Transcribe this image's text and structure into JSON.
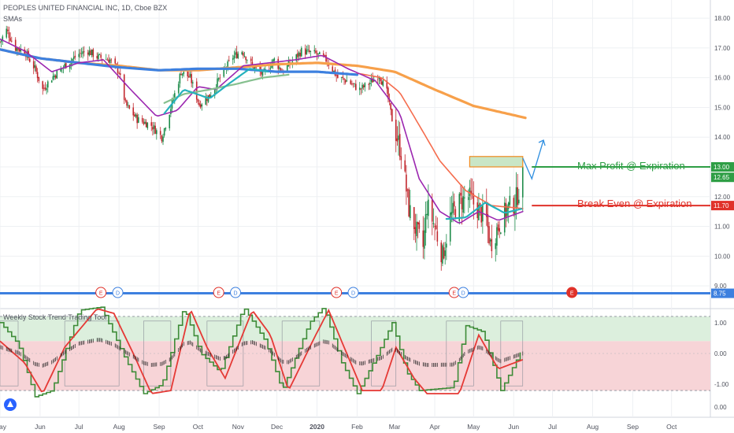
{
  "header": {
    "symbol_line": "PEOPLES UNITED FINANCIAL INC, 1D, Cboe BZX",
    "indicator_line": "SMAs"
  },
  "colors": {
    "bg": "#ffffff",
    "grid": "#eef0f3",
    "axis_text": "#50535e",
    "separator": "#d1d4dc",
    "candle_up": "#1e8c4a",
    "candle_down": "#c2272d",
    "sma_fast": "#9c27b0",
    "sma_mid": "#f56c4d",
    "sma_long": "#f7a04a",
    "sma_200": "#3d80df",
    "sma_teal": "#25b2bd",
    "sma_sage": "#86c08f",
    "profit": "#2e9e45",
    "breakeven": "#e0322a",
    "arrow": "#2f8fe0",
    "box_stroke": "#f08a1f",
    "box_fill": "#c9e6c6",
    "level_line": "#3d80df",
    "osc_red": "#e53935",
    "osc_green": "#3d8b37",
    "osc_green_zone": "#dcefdd",
    "osc_red_zone": "#f7d4d7",
    "earnings": "#e0322a",
    "dividend": "#3d80df"
  },
  "annotations": {
    "max_profit": "Max Profit @ Expiration",
    "break_even": "Break Even @ Expiration"
  },
  "badges": [
    {
      "label": "13.00",
      "color": "#2e9e45",
      "value": 13.0
    },
    {
      "label": "12.65",
      "color": "#2e9e45",
      "value": 12.65
    },
    {
      "label": "11.70",
      "color": "#e0322a",
      "value": 11.7
    },
    {
      "label": "8.75",
      "color": "#3d80df",
      "value": 8.75
    }
  ],
  "events": [
    {
      "type": "E",
      "date": "2019-07-18"
    },
    {
      "type": "D",
      "date": "2019-07-31"
    },
    {
      "type": "E",
      "date": "2019-10-17"
    },
    {
      "type": "D",
      "date": "2019-10-30"
    },
    {
      "type": "E",
      "date": "2020-01-16"
    },
    {
      "type": "D",
      "date": "2020-01-29"
    },
    {
      "type": "E",
      "date": "2020-04-16"
    },
    {
      "type": "D",
      "date": "2020-04-23"
    },
    {
      "type": "E",
      "date": "2020-07-16",
      "upcoming": true
    }
  ],
  "oscillator": {
    "title": "Weekly Stock Trend Trading Tool",
    "ticks": [
      "1.00",
      "0.00",
      "-1.00"
    ],
    "ylim": [
      -1.3,
      1.3
    ],
    "upper_zone": [
      0.4,
      1.2
    ],
    "lower_zone": [
      -1.2,
      0.4
    ]
  },
  "chart_data": {
    "type": "candlestick",
    "title": "PEOPLES UNITED FINANCIAL INC, 1D, Cboe BZX",
    "x_start": "2019-05-01",
    "x_end": "2020-10-31",
    "x_ticks": [
      "May",
      "Jun",
      "Jul",
      "Aug",
      "Sep",
      "Oct",
      "Nov",
      "Dec",
      "2020",
      "Feb",
      "Mar",
      "Apr",
      "May",
      "Jun",
      "Jul",
      "Aug",
      "Sep",
      "Oct"
    ],
    "y_ticks": [
      "18.00",
      "17.00",
      "16.00",
      "15.00",
      "14.00",
      "13.00",
      "12.00",
      "11.00",
      "10.00",
      "9.00"
    ],
    "ylim": [
      8.5,
      18.4
    ],
    "price_keyframes": [
      [
        "2019-05-01",
        17.2
      ],
      [
        "2019-05-06",
        17.6
      ],
      [
        "2019-05-13",
        17.0
      ],
      [
        "2019-05-20",
        16.9
      ],
      [
        "2019-05-28",
        16.3
      ],
      [
        "2019-06-03",
        15.6
      ],
      [
        "2019-06-10",
        16.0
      ],
      [
        "2019-06-20",
        16.4
      ],
      [
        "2019-07-01",
        16.8
      ],
      [
        "2019-07-08",
        16.9
      ],
      [
        "2019-07-15",
        16.7
      ],
      [
        "2019-07-25",
        16.6
      ],
      [
        "2019-08-01",
        16.2
      ],
      [
        "2019-08-06",
        15.1
      ],
      [
        "2019-08-15",
        14.6
      ],
      [
        "2019-08-26",
        14.4
      ],
      [
        "2019-09-03",
        14.0
      ],
      [
        "2019-09-10",
        15.0
      ],
      [
        "2019-09-18",
        16.2
      ],
      [
        "2019-09-25",
        16.0
      ],
      [
        "2019-10-02",
        15.1
      ],
      [
        "2019-10-10",
        15.4
      ],
      [
        "2019-10-18",
        16.0
      ],
      [
        "2019-10-28",
        16.7
      ],
      [
        "2019-11-04",
        16.9
      ],
      [
        "2019-11-12",
        16.4
      ],
      [
        "2019-11-20",
        16.1
      ],
      [
        "2019-11-29",
        16.6
      ],
      [
        "2019-12-05",
        16.2
      ],
      [
        "2019-12-12",
        16.5
      ],
      [
        "2019-12-20",
        16.9
      ],
      [
        "2019-12-31",
        16.8
      ],
      [
        "2020-01-08",
        16.6
      ],
      [
        "2020-01-17",
        16.0
      ],
      [
        "2020-01-24",
        15.9
      ],
      [
        "2020-02-03",
        15.6
      ],
      [
        "2020-02-10",
        15.8
      ],
      [
        "2020-02-18",
        16.1
      ],
      [
        "2020-02-24",
        15.5
      ],
      [
        "2020-02-28",
        14.6
      ],
      [
        "2020-03-06",
        13.5
      ],
      [
        "2020-03-12",
        11.6
      ],
      [
        "2020-03-18",
        10.8
      ],
      [
        "2020-03-23",
        10.3
      ],
      [
        "2020-03-26",
        11.7
      ],
      [
        "2020-04-01",
        11.0
      ],
      [
        "2020-04-07",
        10.0
      ],
      [
        "2020-04-13",
        11.3
      ],
      [
        "2020-04-20",
        11.8
      ],
      [
        "2020-04-27",
        12.0
      ],
      [
        "2020-05-04",
        11.6
      ],
      [
        "2020-05-11",
        11.2
      ],
      [
        "2020-05-14",
        10.4
      ],
      [
        "2020-05-20",
        11.0
      ],
      [
        "2020-05-27",
        11.6
      ],
      [
        "2020-06-02",
        11.8
      ],
      [
        "2020-06-08",
        12.65
      ]
    ],
    "sma_series": [
      {
        "key": "sma_long",
        "width": 3.2,
        "points": [
          [
            "2019-05-01",
            16.95
          ],
          [
            "2019-06-01",
            16.65
          ],
          [
            "2019-07-01",
            16.5
          ],
          [
            "2019-08-01",
            16.4
          ],
          [
            "2019-09-01",
            16.25
          ],
          [
            "2019-10-01",
            16.25
          ],
          [
            "2019-11-01",
            16.35
          ],
          [
            "2019-12-01",
            16.45
          ],
          [
            "2020-01-01",
            16.5
          ],
          [
            "2020-02-01",
            16.4
          ],
          [
            "2020-03-01",
            16.2
          ],
          [
            "2020-04-01",
            15.6
          ],
          [
            "2020-05-01",
            15.05
          ],
          [
            "2020-06-10",
            14.65
          ]
        ]
      },
      {
        "key": "sma_200",
        "width": 3.2,
        "points": [
          [
            "2019-05-01",
            16.95
          ],
          [
            "2019-06-01",
            16.65
          ],
          [
            "2019-07-01",
            16.5
          ],
          [
            "2019-08-01",
            16.35
          ],
          [
            "2019-09-01",
            16.25
          ],
          [
            "2019-10-01",
            16.3
          ],
          [
            "2019-11-01",
            16.3
          ],
          [
            "2019-12-01",
            16.2
          ],
          [
            "2020-01-01",
            16.2
          ],
          [
            "2020-02-01",
            16.1
          ]
        ]
      },
      {
        "key": "sma_mid",
        "width": 1.6,
        "points": [
          [
            "2020-02-01",
            16.15
          ],
          [
            "2020-02-20",
            16.0
          ],
          [
            "2020-03-05",
            15.5
          ],
          [
            "2020-03-20",
            14.4
          ],
          [
            "2020-04-05",
            13.2
          ],
          [
            "2020-04-25",
            12.2
          ],
          [
            "2020-05-15",
            11.7
          ],
          [
            "2020-06-08",
            11.6
          ]
        ]
      },
      {
        "key": "sma_fast",
        "width": 1.6,
        "points": [
          [
            "2019-05-01",
            17.3
          ],
          [
            "2019-05-20",
            16.9
          ],
          [
            "2019-06-10",
            16.2
          ],
          [
            "2019-07-01",
            16.5
          ],
          [
            "2019-07-20",
            16.6
          ],
          [
            "2019-08-10",
            15.6
          ],
          [
            "2019-08-30",
            14.7
          ],
          [
            "2019-09-15",
            14.9
          ],
          [
            "2019-10-01",
            15.7
          ],
          [
            "2019-10-15",
            15.6
          ],
          [
            "2019-11-05",
            16.4
          ],
          [
            "2019-11-25",
            16.5
          ],
          [
            "2019-12-15",
            16.6
          ],
          [
            "2020-01-05",
            16.75
          ],
          [
            "2020-01-25",
            16.3
          ],
          [
            "2020-02-15",
            15.9
          ],
          [
            "2020-03-05",
            14.8
          ],
          [
            "2020-03-20",
            12.6
          ],
          [
            "2020-04-05",
            11.5
          ],
          [
            "2020-04-20",
            11.1
          ],
          [
            "2020-05-05",
            11.5
          ],
          [
            "2020-05-20",
            11.2
          ],
          [
            "2020-06-08",
            11.5
          ]
        ]
      },
      {
        "key": "sma_sage",
        "width": 2.2,
        "points": [
          [
            "2019-09-05",
            15.15
          ],
          [
            "2019-09-20",
            15.45
          ],
          [
            "2019-10-10",
            15.6
          ],
          [
            "2019-11-01",
            15.8
          ],
          [
            "2019-11-20",
            16.0
          ],
          [
            "2019-12-10",
            16.1
          ]
        ]
      },
      {
        "key": "sma_teal",
        "width": 2.2,
        "points": [
          [
            "2019-09-05",
            14.8
          ],
          [
            "2019-09-20",
            15.6
          ],
          [
            "2019-10-10",
            15.3
          ],
          [
            "2019-10-25",
            15.8
          ],
          [
            "2019-11-10",
            16.3
          ],
          [
            "2019-11-25",
            16.2
          ]
        ]
      },
      {
        "key": "sma_teal",
        "width": 2.2,
        "points": [
          [
            "2020-04-10",
            11.25
          ],
          [
            "2020-04-25",
            11.3
          ],
          [
            "2020-05-10",
            11.8
          ],
          [
            "2020-05-25",
            11.45
          ],
          [
            "2020-06-08",
            11.6
          ]
        ]
      }
    ],
    "osc_red_keyframes": [
      [
        "2019-05-01",
        0.4
      ],
      [
        "2019-05-20",
        -0.3
      ],
      [
        "2019-06-03",
        -1.3
      ],
      [
        "2019-06-20",
        0.2
      ],
      [
        "2019-07-15",
        1.45
      ],
      [
        "2019-07-28",
        1.3
      ],
      [
        "2019-08-12",
        0.0
      ],
      [
        "2019-08-26",
        -1.3
      ],
      [
        "2019-09-10",
        -1.2
      ],
      [
        "2019-09-25",
        1.45
      ],
      [
        "2019-10-08",
        0.2
      ],
      [
        "2019-10-22",
        -0.8
      ],
      [
        "2019-11-12",
        1.4
      ],
      [
        "2019-11-26",
        0.6
      ],
      [
        "2019-12-10",
        -1.2
      ],
      [
        "2019-12-31",
        0.6
      ],
      [
        "2020-01-10",
        1.4
      ],
      [
        "2020-01-24",
        0.0
      ],
      [
        "2020-02-05",
        -1.2
      ],
      [
        "2020-02-20",
        -1.2
      ],
      [
        "2020-03-02",
        0.2
      ],
      [
        "2020-03-16",
        -0.8
      ],
      [
        "2020-03-26",
        -1.3
      ],
      [
        "2020-04-20",
        -1.3
      ],
      [
        "2020-05-05",
        0.6
      ],
      [
        "2020-05-20",
        -0.5
      ],
      [
        "2020-06-08",
        -0.2
      ]
    ],
    "osc_green_keyframes": [
      [
        "2019-05-01",
        1.0
      ],
      [
        "2019-05-15",
        0.3
      ],
      [
        "2019-05-28",
        -1.4
      ],
      [
        "2019-06-10",
        -1.2
      ],
      [
        "2019-07-01",
        1.4
      ],
      [
        "2019-07-18",
        1.5
      ],
      [
        "2019-08-06",
        -0.2
      ],
      [
        "2019-08-20",
        -1.3
      ],
      [
        "2019-09-03",
        -1.0
      ],
      [
        "2019-09-20",
        1.5
      ],
      [
        "2019-10-03",
        0.0
      ],
      [
        "2019-10-18",
        -0.6
      ],
      [
        "2019-11-05",
        1.5
      ],
      [
        "2019-11-22",
        0.4
      ],
      [
        "2019-12-05",
        -1.2
      ],
      [
        "2019-12-26",
        1.0
      ],
      [
        "2020-01-06",
        1.5
      ],
      [
        "2020-01-20",
        -0.3
      ],
      [
        "2020-02-01",
        -1.3
      ],
      [
        "2020-02-18",
        0.1
      ],
      [
        "2020-02-28",
        1.0
      ],
      [
        "2020-03-10",
        -0.6
      ],
      [
        "2020-03-20",
        -1.2
      ],
      [
        "2020-04-15",
        -1.1
      ],
      [
        "2020-04-25",
        0.9
      ],
      [
        "2020-05-08",
        0.7
      ],
      [
        "2020-05-22",
        -1.2
      ],
      [
        "2020-06-08",
        0.2
      ]
    ],
    "osc_boxes": [
      [
        "2019-05-01",
        "2019-05-15"
      ],
      [
        "2019-06-20",
        "2019-08-01"
      ],
      [
        "2019-08-20",
        "2019-09-10"
      ],
      [
        "2019-10-08",
        "2019-11-05"
      ],
      [
        "2019-12-05",
        "2020-01-03"
      ],
      [
        "2020-02-12",
        "2020-03-02"
      ],
      [
        "2020-04-10",
        "2020-05-01"
      ],
      [
        "2020-05-22",
        "2020-06-08"
      ]
    ],
    "target_box": {
      "x0": "2020-04-28",
      "x1": "2020-06-08",
      "y0": 13.0,
      "y1": 13.35
    },
    "projection_arrow": [
      [
        "2020-06-08",
        13.3
      ],
      [
        "2020-06-15",
        12.6
      ],
      [
        "2020-06-24",
        13.9
      ]
    ],
    "max_profit_level": {
      "start": "2020-06-15",
      "value": 13.0
    },
    "break_even_level": {
      "start": "2020-06-15",
      "value": 11.7
    },
    "support_level": {
      "value": 8.75
    },
    "osc_zero_line": 0.0,
    "osc_upper_dash": 1.2,
    "osc_lower_dash": -1.2
  }
}
